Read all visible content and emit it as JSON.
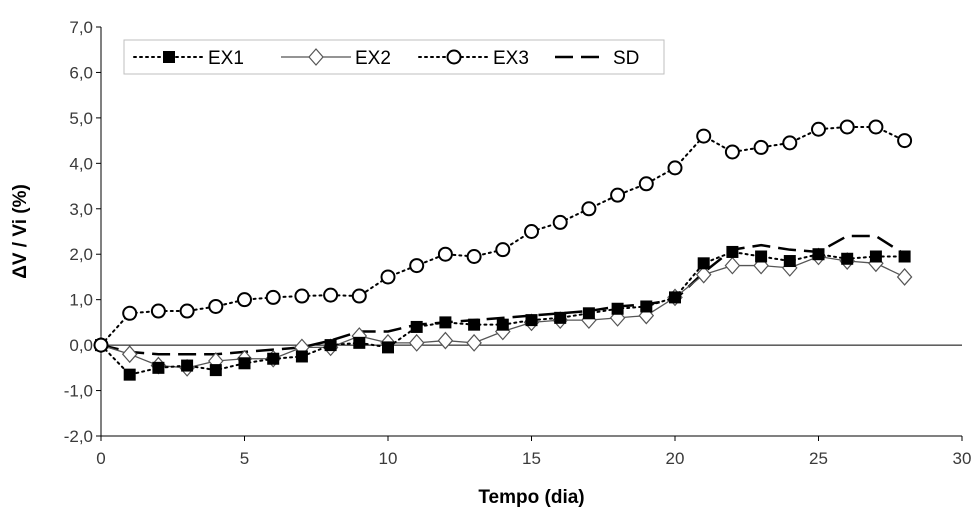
{
  "chart_data": {
    "type": "line",
    "xlabel": "Tempo (dia)",
    "ylabel": "ΔV / Vi (%)",
    "xlim": [
      0,
      30
    ],
    "ylim": [
      -2.0,
      7.0
    ],
    "xticks": [
      0,
      5,
      10,
      15,
      20,
      25,
      30
    ],
    "xtick_labels": [
      "0",
      "5",
      "10",
      "15",
      "20",
      "25",
      "30"
    ],
    "yticks": [
      -2.0,
      -1.0,
      0.0,
      1.0,
      2.0,
      3.0,
      4.0,
      5.0,
      6.0,
      7.0
    ],
    "ytick_labels": [
      "-2,0",
      "-1,0",
      "0,0",
      "1,0",
      "2,0",
      "3,0",
      "4,0",
      "5,0",
      "6,0",
      "7,0"
    ],
    "grid": false,
    "zero_line": true,
    "legend_position": "top-left",
    "series": [
      {
        "name": "EX1",
        "style": "dotted",
        "marker": "filled-square",
        "x": [
          0,
          1,
          2,
          3,
          4,
          5,
          6,
          7,
          8,
          9,
          10,
          11,
          12,
          13,
          14,
          15,
          16,
          17,
          18,
          19,
          20,
          21,
          22,
          23,
          24,
          25,
          26,
          27,
          28
        ],
        "values": [
          0.0,
          -0.65,
          -0.5,
          -0.45,
          -0.55,
          -0.4,
          -0.3,
          -0.25,
          0.0,
          0.05,
          -0.05,
          0.4,
          0.5,
          0.45,
          0.45,
          0.55,
          0.6,
          0.7,
          0.8,
          0.85,
          1.05,
          1.8,
          2.05,
          1.95,
          1.85,
          2.0,
          1.9,
          1.95,
          1.95
        ]
      },
      {
        "name": "EX2",
        "style": "solid",
        "marker": "open-diamond",
        "x": [
          0,
          1,
          2,
          3,
          4,
          5,
          6,
          7,
          8,
          9,
          10,
          11,
          12,
          13,
          14,
          15,
          16,
          17,
          18,
          19,
          20,
          21,
          22,
          23,
          24,
          25,
          26,
          27,
          28
        ],
        "values": [
          0.0,
          -0.2,
          -0.45,
          -0.5,
          -0.35,
          -0.3,
          -0.3,
          -0.05,
          -0.05,
          0.2,
          0.05,
          0.05,
          0.1,
          0.05,
          0.3,
          0.5,
          0.55,
          0.55,
          0.6,
          0.65,
          1.05,
          1.55,
          1.75,
          1.75,
          1.7,
          1.95,
          1.85,
          1.8,
          1.5
        ]
      },
      {
        "name": "EX3",
        "style": "dotted",
        "marker": "open-circle",
        "x": [
          0,
          1,
          2,
          3,
          4,
          5,
          6,
          7,
          8,
          9,
          10,
          11,
          12,
          13,
          14,
          15,
          16,
          17,
          18,
          19,
          20,
          21,
          22,
          23,
          24,
          25,
          26,
          27,
          28
        ],
        "values": [
          0.0,
          0.7,
          0.75,
          0.75,
          0.85,
          1.0,
          1.05,
          1.08,
          1.1,
          1.08,
          1.5,
          1.75,
          2.0,
          1.95,
          2.1,
          2.5,
          2.7,
          3.0,
          3.3,
          3.55,
          3.9,
          4.6,
          4.25,
          4.35,
          4.45,
          4.75,
          4.8,
          4.8,
          4.5
        ]
      },
      {
        "name": "SD",
        "style": "long-dash",
        "marker": "none",
        "x": [
          0,
          1,
          2,
          3,
          4,
          5,
          6,
          7,
          8,
          9,
          10,
          11,
          12,
          13,
          14,
          15,
          16,
          17,
          18,
          19,
          20,
          21,
          22,
          23,
          24,
          25,
          26,
          27,
          28
        ],
        "values": [
          0.0,
          -0.15,
          -0.2,
          -0.2,
          -0.2,
          -0.15,
          -0.1,
          -0.05,
          0.1,
          0.3,
          0.3,
          0.45,
          0.5,
          0.55,
          0.6,
          0.65,
          0.7,
          0.75,
          0.85,
          0.9,
          1.0,
          1.6,
          2.1,
          2.2,
          2.1,
          2.05,
          2.4,
          2.4,
          2.0
        ]
      }
    ]
  }
}
